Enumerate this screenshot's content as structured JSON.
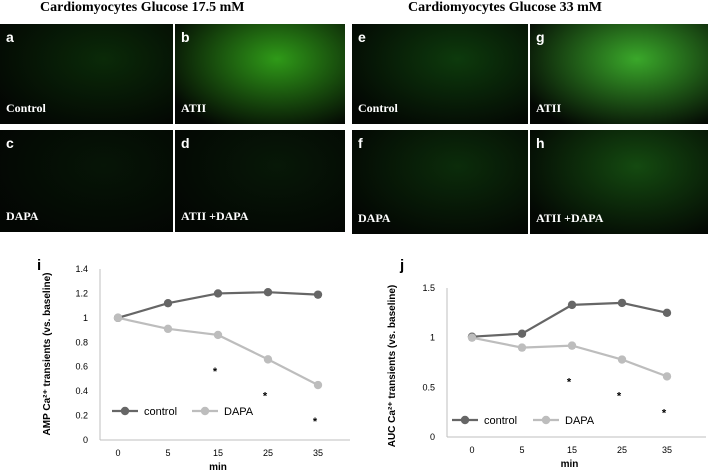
{
  "figure": {
    "group_titles": {
      "left": "Cardiomyocytes Glucose 17.5 mM",
      "right": "Cardiomyocytes Glucose 33 mM"
    },
    "panels": [
      {
        "letter": "a",
        "condition": "Control",
        "tint": "#0a2a08"
      },
      {
        "letter": "b",
        "condition": "ATII",
        "tint": "#2f9a18"
      },
      {
        "letter": "c",
        "condition": "",
        "tint": "#061506"
      },
      {
        "letter": "d",
        "condition": "",
        "tint": "#071807"
      },
      {
        "letter": "e",
        "condition": "Control",
        "tint": "#0d3a0c"
      },
      {
        "letter": "g",
        "condition": "ATII",
        "tint": "#3aa82a"
      },
      {
        "letter": "f",
        "condition": "DAPA",
        "tint": "#0b2c0a"
      },
      {
        "letter": "h",
        "condition": "ATII  +DAPA",
        "tint": "#144a10"
      }
    ],
    "panel_c_label": "DAPA",
    "panel_d_label": "ATII  +DAPA"
  },
  "colors": {
    "control": "#666666",
    "dapa": "#bdbdbd",
    "axis": "#bfbfbf"
  },
  "chart_data": [
    {
      "panel_letter": "i",
      "type": "line",
      "x": [
        0,
        5,
        15,
        25,
        35
      ],
      "xlabel": "min",
      "ylabel": "AMP Ca²⁺ transients (vs. baseline)",
      "ylim": [
        0,
        1.4
      ],
      "yticks": [
        "0",
        "0.2",
        "0.4",
        "0.6",
        "0.8",
        "1",
        "1.2",
        "1.4"
      ],
      "series": [
        {
          "name": "control",
          "values": [
            1.0,
            1.12,
            1.2,
            1.21,
            1.19
          ]
        },
        {
          "name": "DAPA",
          "values": [
            1.0,
            0.91,
            0.86,
            0.66,
            0.45
          ]
        }
      ],
      "significance": [
        "",
        "",
        "*",
        "*",
        "*"
      ],
      "legend": "bottom-left",
      "grid": false
    },
    {
      "panel_letter": "j",
      "type": "line",
      "x": [
        0,
        5,
        15,
        25,
        35
      ],
      "xlabel": "min",
      "ylabel": "AUC Ca²⁺ transients (vs. baseline)",
      "ylim": [
        0,
        1.5
      ],
      "yticks": [
        "0",
        "0.5",
        "1",
        "1.5"
      ],
      "series": [
        {
          "name": "control",
          "values": [
            1.01,
            1.04,
            1.33,
            1.35,
            1.25
          ]
        },
        {
          "name": "DAPA",
          "values": [
            1.0,
            0.9,
            0.92,
            0.78,
            0.61
          ]
        }
      ],
      "significance": [
        "",
        "",
        "*",
        "*",
        "*"
      ],
      "legend": "bottom-left",
      "grid": false
    }
  ]
}
